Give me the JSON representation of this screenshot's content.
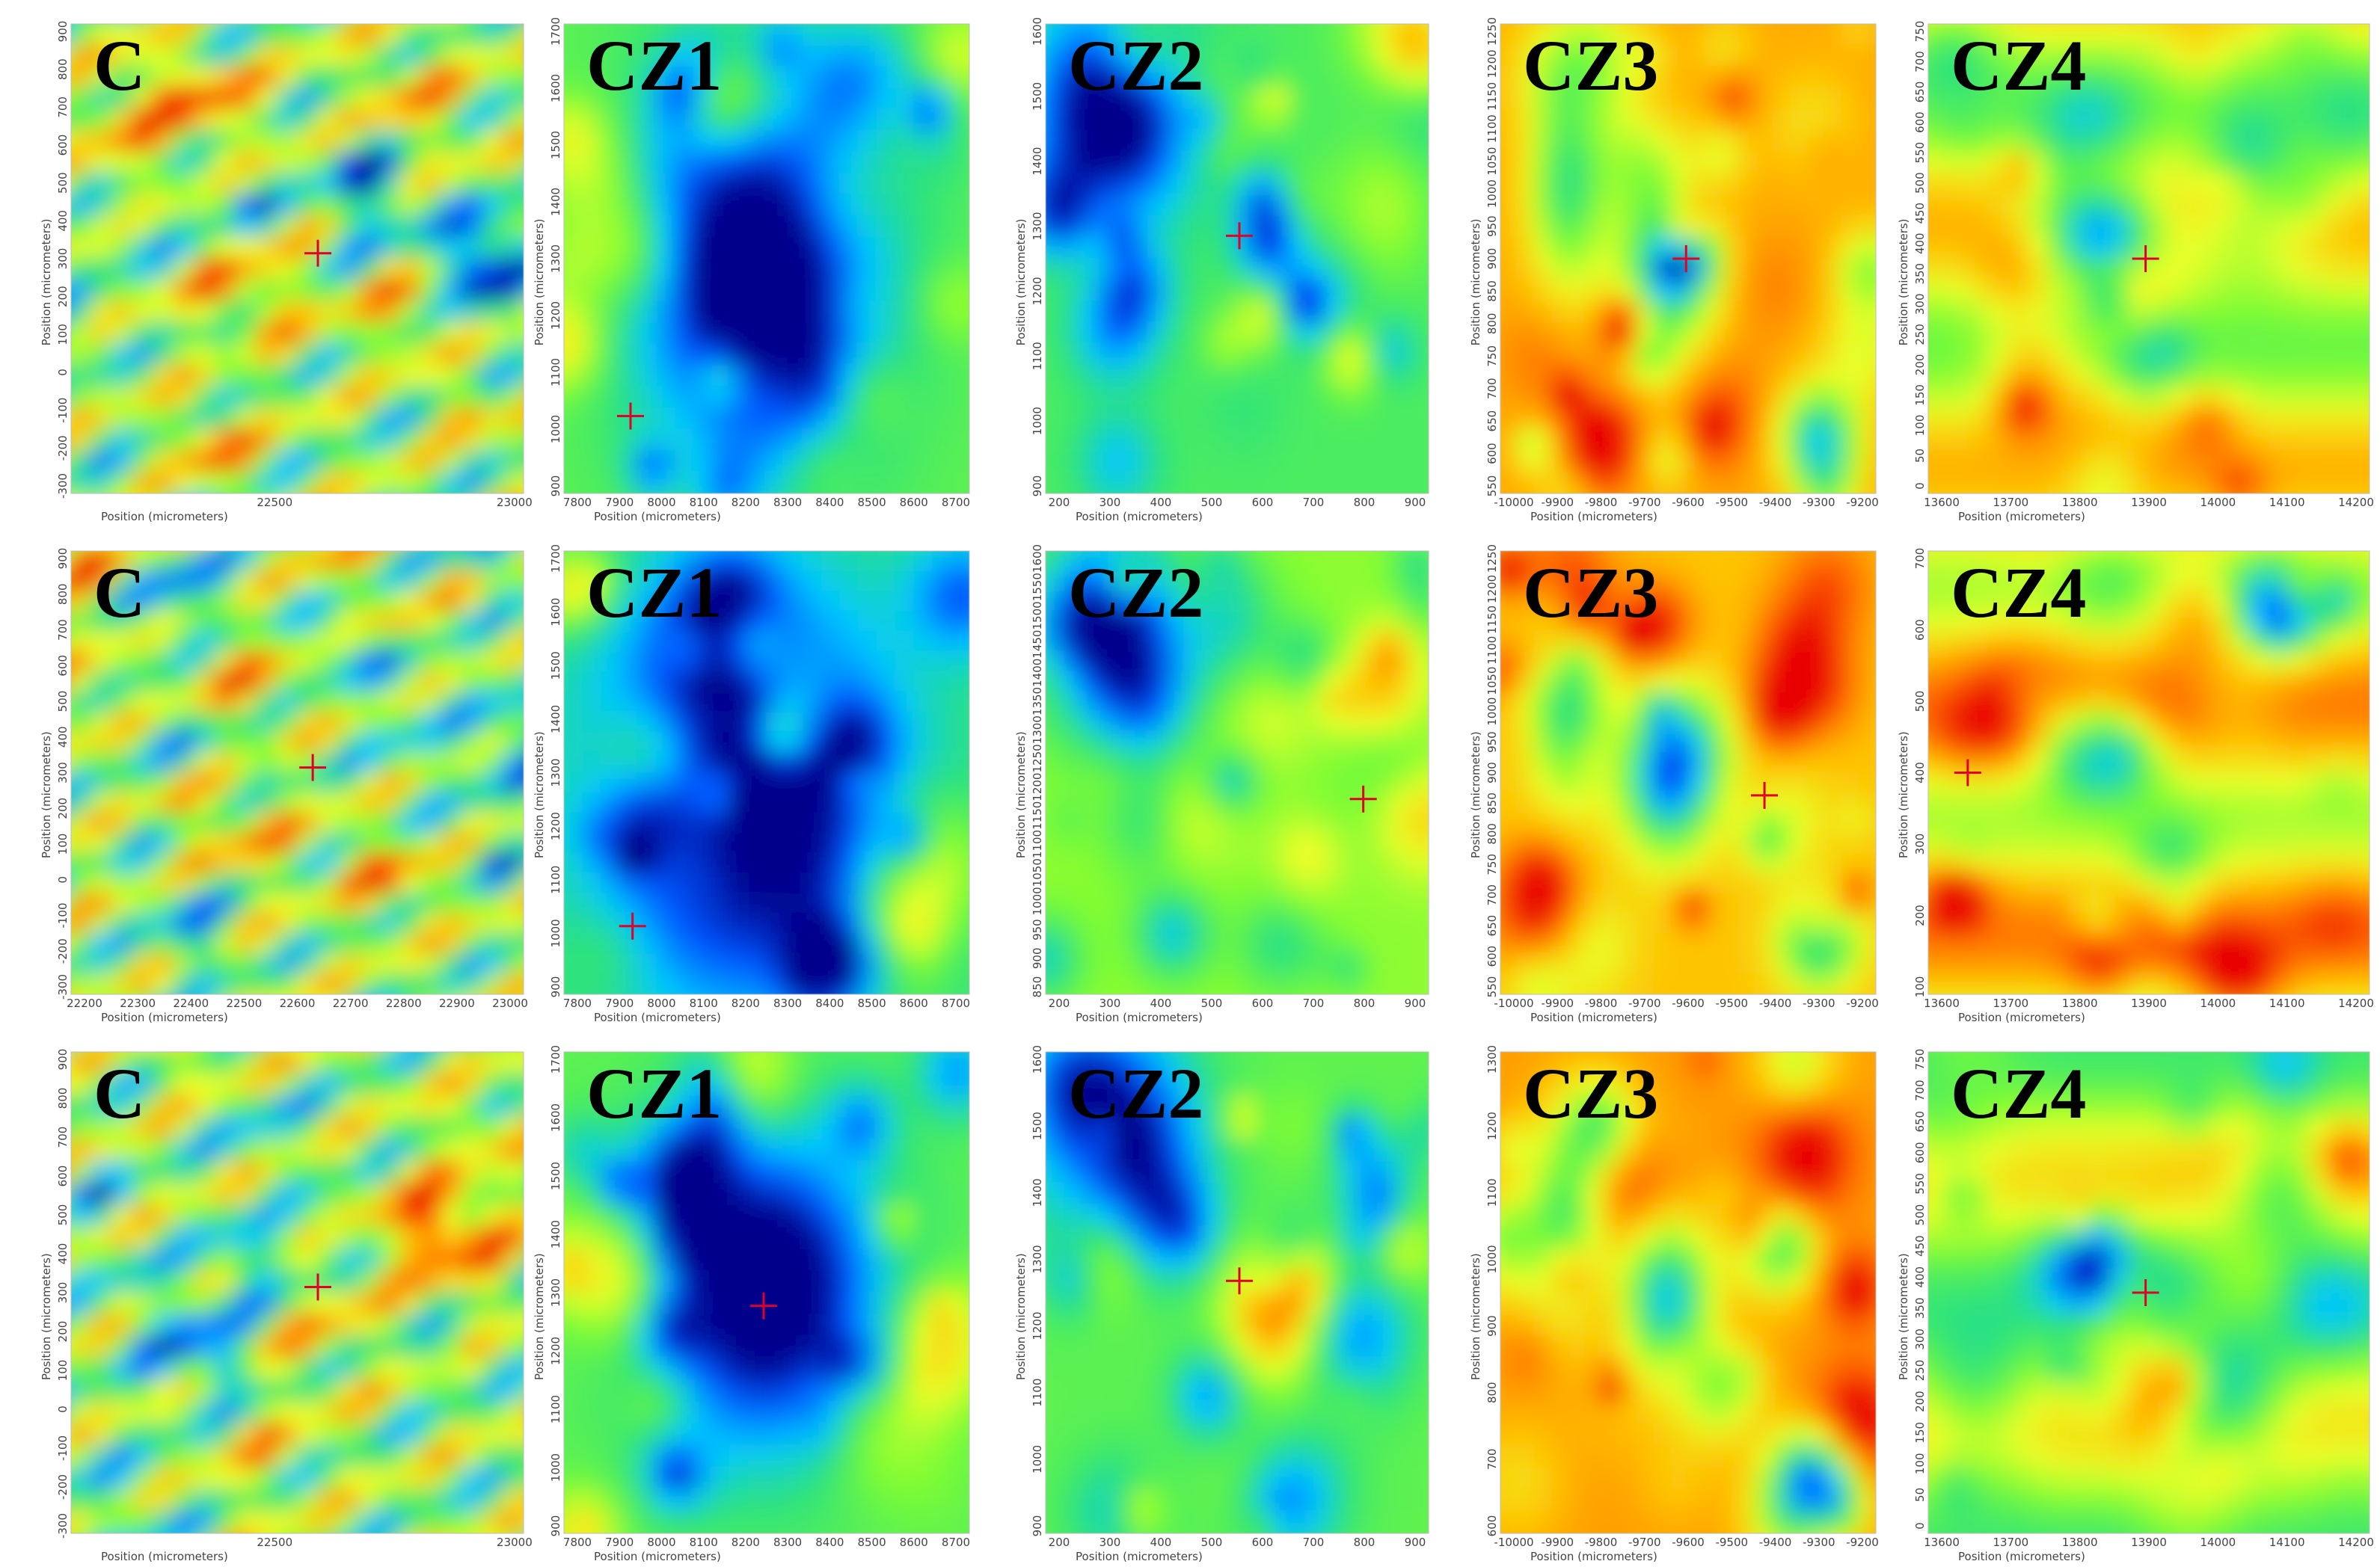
{
  "colors": {
    "marker": "#e0002a",
    "axis_text": "#444444"
  },
  "chart_data": {
    "type": "heatmap",
    "layout": "3 rows x 5 columns of 2D surface maps",
    "colormap": [
      "#00008b",
      "#0057ff",
      "#00c8ff",
      "#2fe37a",
      "#7dfc34",
      "#eaff2a",
      "#ffc000",
      "#ff6a00",
      "#e80000"
    ],
    "rows": [
      {
        "panels": [
          {
            "label": "C",
            "xlabel": "Position (micrometers)",
            "ylabel": "Position (micrometers)",
            "xticks": [
              "22500",
              "23000"
            ],
            "yticks": [
              "900",
              "800",
              "700",
              "600",
              "500",
              "400",
              "300",
              "200",
              "100",
              "0",
              "-100",
              "-200",
              "-300"
            ],
            "marker": [
              22610,
              290
            ],
            "xlim": [
              22130,
              23010
            ],
            "ylim": [
              -370,
              920
            ],
            "seed": 11,
            "base": 0.5,
            "pattern": "stripes"
          },
          {
            "label": "CZ1",
            "xlabel": "Position (micrometers)",
            "ylabel": "Position (micrometers)",
            "xticks": [
              "7800",
              "7900",
              "8000",
              "8100",
              "8200",
              "8300",
              "8400",
              "8500",
              "8600",
              "8700"
            ],
            "yticks": [
              "1700",
              "1600",
              "1500",
              "1400",
              "1300",
              "1200",
              "1100",
              "1000",
              "900"
            ],
            "marker": [
              7900,
              1010
            ],
            "xlim": [
              7735,
              8740
            ],
            "ylim": [
              860,
              1770
            ],
            "seed": 23,
            "base": 0.45,
            "pattern": "blob",
            "blob": [
              0.48,
              0.52,
              0.3,
              0.4
            ]
          },
          {
            "label": "CZ2",
            "xlabel": "Position (micrometers)",
            "ylabel": "Position (micrometers)",
            "xticks": [
              "200",
              "300",
              "400",
              "500",
              "600",
              "700",
              "800",
              "900"
            ],
            "yticks": [
              "1600",
              "1500",
              "1400",
              "1300",
              "1200",
              "1100",
              "1000",
              "900"
            ],
            "marker": [
              540,
              1310
            ],
            "xlim": [
              110,
              960
            ],
            "ylim": [
              860,
              1680
            ],
            "seed": 37,
            "base": 0.42,
            "pattern": "corner"
          },
          {
            "label": "CZ3",
            "xlabel": "Position (micrometers)",
            "ylabel": "Position (micrometers)",
            "xticks": [
              "-10000",
              "-9900",
              "-9800",
              "-9700",
              "-9600",
              "-9500",
              "-9400",
              "-9300",
              "-9200"
            ],
            "yticks": [
              "1250",
              "1200",
              "1150",
              "1100",
              "1050",
              "1000",
              "950",
              "900",
              "850",
              "800",
              "750",
              "700",
              "650",
              "600",
              "550"
            ],
            "marker": [
              -9590,
              910
            ],
            "xlim": [
              -10040,
              -9130
            ],
            "ylim": [
              520,
              1300
            ],
            "seed": 41,
            "base": 0.78,
            "pattern": "islands"
          },
          {
            "label": "CZ4",
            "xlabel": "Position (micrometers)",
            "ylabel": "Position (micrometers)",
            "xticks": [
              "13600",
              "13700",
              "13800",
              "13900",
              "14000",
              "14100",
              "14200"
            ],
            "yticks": [
              "750",
              "700",
              "650",
              "600",
              "550",
              "500",
              "450",
              "400",
              "350",
              "300",
              "250",
              "200",
              "150",
              "100",
              "50",
              "0"
            ],
            "marker": [
              13890,
              380
            ],
            "xlim": [
              13560,
              14230
            ],
            "ylim": [
              -20,
              780
            ],
            "seed": 53,
            "base": 0.62,
            "pattern": "hole"
          }
        ]
      },
      {
        "panels": [
          {
            "label": "C",
            "xlabel": "Position (micrometers)",
            "ylabel": "Position (micrometers)",
            "xticks": [
              "22200",
              "22300",
              "22400",
              "22500",
              "22600",
              "22700",
              "22800",
              "22900",
              "23000"
            ],
            "yticks": [
              "900",
              "800",
              "700",
              "600",
              "500",
              "400",
              "300",
              "200",
              "100",
              "0",
              "-100",
              "-200",
              "-300"
            ],
            "marker": [
              22600,
              290
            ],
            "xlim": [
              22130,
              23010
            ],
            "ylim": [
              -370,
              920
            ],
            "seed": 12,
            "base": 0.5,
            "pattern": "stripes"
          },
          {
            "label": "CZ1",
            "xlabel": "Position (micrometers)",
            "ylabel": "Position (micrometers)",
            "xticks": [
              "7800",
              "7900",
              "8000",
              "8100",
              "8200",
              "8300",
              "8400",
              "8500",
              "8600",
              "8700"
            ],
            "yticks": [
              "1700",
              "1600",
              "1500",
              "1400",
              "1300",
              "1200",
              "1100",
              "1000",
              "900"
            ],
            "marker": [
              7905,
              1000
            ],
            "xlim": [
              7735,
              8740
            ],
            "ylim": [
              860,
              1770
            ],
            "seed": 24,
            "base": 0.4,
            "pattern": "blob",
            "blob": [
              0.45,
              0.55,
              0.35,
              0.45
            ]
          },
          {
            "label": "CZ2",
            "xlabel": "Position (micrometers)",
            "ylabel": "Position (micrometers)",
            "xticks": [
              "200",
              "300",
              "400",
              "500",
              "600",
              "700",
              "800",
              "900"
            ],
            "yticks": [
              "1600",
              "1550",
              "1500",
              "1450",
              "1400",
              "1350",
              "1300",
              "1250",
              "1200",
              "1150",
              "1100",
              "1050",
              "1000",
              "950",
              "900",
              "850"
            ],
            "marker": [
              815,
              1190
            ],
            "xlim": [
              110,
              960
            ],
            "ylim": [
              820,
              1660
            ],
            "seed": 38,
            "base": 0.52,
            "pattern": "corner"
          },
          {
            "label": "CZ3",
            "xlabel": "Position (micrometers)",
            "ylabel": "Position (micrometers)",
            "xticks": [
              "-10000",
              "-9900",
              "-9800",
              "-9700",
              "-9600",
              "-9500",
              "-9400",
              "-9300",
              "-9200"
            ],
            "yticks": [
              "1250",
              "1200",
              "1150",
              "1100",
              "1050",
              "1000",
              "950",
              "900",
              "850",
              "800",
              "750",
              "700",
              "650",
              "600",
              "550"
            ],
            "marker": [
              -9400,
              870
            ],
            "xlim": [
              -10040,
              -9130
            ],
            "ylim": [
              520,
              1300
            ],
            "seed": 42,
            "base": 0.74,
            "pattern": "islands"
          },
          {
            "label": "CZ4",
            "xlabel": "Position (micrometers)",
            "ylabel": "Position (micrometers)",
            "xticks": [
              "13600",
              "13700",
              "13800",
              "13900",
              "14000",
              "14100",
              "14200"
            ],
            "yticks": [
              "700",
              "600",
              "500",
              "400",
              "300",
              "200",
              "100"
            ],
            "marker": [
              13620,
              410
            ],
            "xlim": [
              13560,
              14230
            ],
            "ylim": [
              60,
              760
            ],
            "seed": 54,
            "base": 0.7,
            "pattern": "hole"
          }
        ]
      },
      {
        "panels": [
          {
            "label": "C",
            "xlabel": "Position (micrometers)",
            "ylabel": "Position (micrometers)",
            "xticks": [
              "22500",
              "23000"
            ],
            "yticks": [
              "900",
              "800",
              "700",
              "600",
              "500",
              "400",
              "300",
              "200",
              "100",
              "0",
              "-100",
              "-200",
              "-300"
            ],
            "marker": [
              22610,
              290
            ],
            "xlim": [
              22130,
              23010
            ],
            "ylim": [
              -370,
              920
            ],
            "seed": 13,
            "base": 0.5,
            "pattern": "stripes"
          },
          {
            "label": "CZ1",
            "xlabel": "Position (micrometers)",
            "ylabel": "Position (micrometers)",
            "xticks": [
              "7800",
              "7900",
              "8000",
              "8100",
              "8200",
              "8300",
              "8400",
              "8500",
              "8600",
              "8700"
            ],
            "yticks": [
              "1700",
              "1600",
              "1500",
              "1400",
              "1300",
              "1200",
              "1100",
              "1000",
              "900"
            ],
            "marker": [
              8230,
              1290
            ],
            "xlim": [
              7735,
              8740
            ],
            "ylim": [
              860,
              1770
            ],
            "seed": 25,
            "base": 0.45,
            "pattern": "blob",
            "blob": [
              0.5,
              0.5,
              0.28,
              0.32
            ]
          },
          {
            "label": "CZ2",
            "xlabel": "Position (micrometers)",
            "ylabel": "Position (micrometers)",
            "xticks": [
              "200",
              "300",
              "400",
              "500",
              "600",
              "700",
              "800",
              "900"
            ],
            "yticks": [
              "1600",
              "1500",
              "1400",
              "1300",
              "1200",
              "1100",
              "1000",
              "900"
            ],
            "marker": [
              540,
              1290
            ],
            "xlim": [
              110,
              960
            ],
            "ylim": [
              860,
              1680
            ],
            "seed": 39,
            "base": 0.45,
            "pattern": "corner"
          },
          {
            "label": "CZ3",
            "xlabel": "Position (micrometers)",
            "ylabel": "Position (micrometers)",
            "xticks": [
              "-10000",
              "-9900",
              "-9800",
              "-9700",
              "-9600",
              "-9500",
              "-9400",
              "-9300",
              "-9200"
            ],
            "yticks": [
              "1300",
              "1200",
              "1100",
              "1000",
              "900",
              "800",
              "700",
              "600"
            ],
            "marker": null,
            "xlim": [
              -10040,
              -9130
            ],
            "ylim": [
              520,
              1310
            ],
            "seed": 43,
            "base": 0.8,
            "pattern": "islands"
          },
          {
            "label": "CZ4",
            "xlabel": "Position (micrometers)",
            "ylabel": "Position (micrometers)",
            "xticks": [
              "13600",
              "13700",
              "13800",
              "13900",
              "14000",
              "14100",
              "14200"
            ],
            "yticks": [
              "750",
              "700",
              "650",
              "600",
              "550",
              "500",
              "450",
              "400",
              "350",
              "300",
              "250",
              "200",
              "150",
              "100",
              "50",
              "0"
            ],
            "marker": [
              13890,
              380
            ],
            "xlim": [
              13560,
              14230
            ],
            "ylim": [
              -20,
              780
            ],
            "seed": 55,
            "base": 0.55,
            "pattern": "hole"
          }
        ]
      }
    ]
  }
}
